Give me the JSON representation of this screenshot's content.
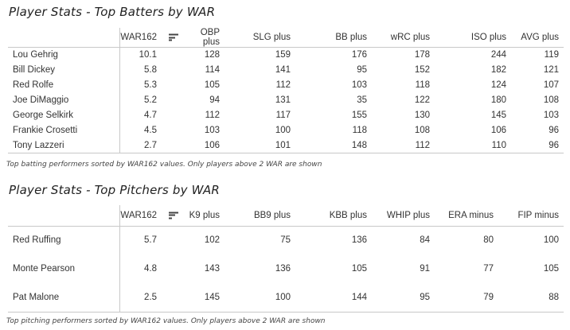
{
  "batters": {
    "title": "Player Stats - Top Batters by WAR",
    "columns": [
      "",
      "WAR162",
      "OBP plus",
      "SLG plus",
      "BB plus",
      "wRC plus",
      "ISO plus",
      "AVG plus"
    ],
    "rows": [
      [
        "Lou Gehrig",
        "10.1",
        "128",
        "159",
        "176",
        "178",
        "244",
        "119"
      ],
      [
        "Bill Dickey",
        "5.8",
        "114",
        "141",
        "95",
        "152",
        "182",
        "121"
      ],
      [
        "Red Rolfe",
        "5.3",
        "105",
        "112",
        "103",
        "118",
        "124",
        "107"
      ],
      [
        "Joe DiMaggio",
        "5.2",
        "94",
        "131",
        "35",
        "122",
        "180",
        "108"
      ],
      [
        "George Selkirk",
        "4.7",
        "112",
        "117",
        "155",
        "130",
        "145",
        "103"
      ],
      [
        "Frankie Crosetti",
        "4.5",
        "103",
        "100",
        "118",
        "108",
        "106",
        "96"
      ],
      [
        "Tony Lazzeri",
        "2.7",
        "106",
        "101",
        "148",
        "112",
        "110",
        "96"
      ]
    ],
    "caption": "Top batting performers sorted by WAR162 values. Only players above 2 WAR are shown"
  },
  "pitchers": {
    "title": "Player Stats - Top Pitchers by WAR",
    "columns": [
      "",
      "WAR162",
      "K9 plus",
      "BB9 plus",
      "KBB plus",
      "WHIP plus",
      "ERA minus",
      "FIP minus"
    ],
    "rows": [
      [
        "Red Ruffing",
        "5.7",
        "102",
        "75",
        "136",
        "84",
        "80",
        "100"
      ],
      [
        "Monte Pearson",
        "4.8",
        "143",
        "136",
        "105",
        "91",
        "77",
        "105"
      ],
      [
        "Pat Malone",
        "2.5",
        "145",
        "100",
        "144",
        "95",
        "79",
        "88"
      ]
    ],
    "caption": "Top pitching performers sorted by WAR162 values. Only players above 2 WAR are shown"
  }
}
